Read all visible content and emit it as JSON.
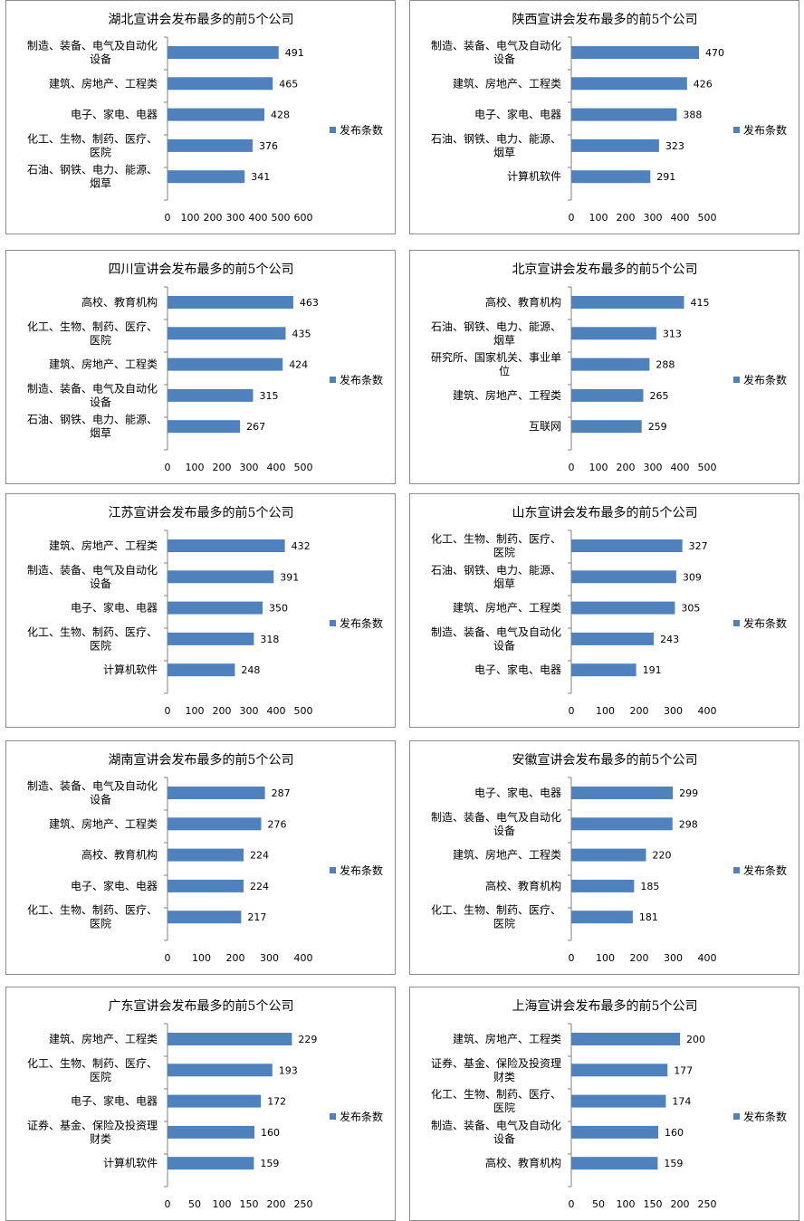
{
  "legend_label": "发布条数",
  "colors": {
    "bar": "#4f81bd",
    "axis": "#808080",
    "border": "#8c8c8c"
  },
  "chart_data": [
    {
      "type": "bar",
      "orientation": "horizontal",
      "title": "湖北宣讲会发布最多的前5个公司",
      "categories": [
        [
          "制造、装备、电气及自动化",
          "设备"
        ],
        [
          "建筑、房地产、工程类"
        ],
        [
          "电子、家电、电器"
        ],
        [
          "化工、生物、制药、医疗、",
          "医院"
        ],
        [
          "石油、钢铁、电力、能源、",
          "烟草"
        ]
      ],
      "series": [
        {
          "name": "发布条数",
          "values": [
            491,
            465,
            428,
            376,
            341
          ]
        }
      ],
      "xlim": [
        0,
        600
      ],
      "ticks": [
        0,
        100,
        200,
        300,
        400,
        500,
        600
      ],
      "legend": "right"
    },
    {
      "type": "bar",
      "orientation": "horizontal",
      "title": "陕西宣讲会发布最多的前5个公司",
      "categories": [
        [
          "制造、装备、电气及自动化",
          "设备"
        ],
        [
          "建筑、房地产、工程类"
        ],
        [
          "电子、家电、电器"
        ],
        [
          "石油、钢铁、电力、能源、",
          "烟草"
        ],
        [
          "计算机软件"
        ]
      ],
      "series": [
        {
          "name": "发布条数",
          "values": [
            470,
            426,
            388,
            323,
            291
          ]
        }
      ],
      "xlim": [
        0,
        500
      ],
      "ticks": [
        0,
        100,
        200,
        300,
        400,
        500
      ],
      "legend": "right"
    },
    {
      "type": "bar",
      "orientation": "horizontal",
      "title": "四川宣讲会发布最多的前5个公司",
      "categories": [
        [
          "高校、教育机构"
        ],
        [
          "化工、生物、制药、医疗、",
          "医院"
        ],
        [
          "建筑、房地产、工程类"
        ],
        [
          "制造、装备、电气及自动化",
          "设备"
        ],
        [
          "石油、钢铁、电力、能源、",
          "烟草"
        ]
      ],
      "series": [
        {
          "name": "发布条数",
          "values": [
            463,
            435,
            424,
            315,
            267
          ]
        }
      ],
      "xlim": [
        0,
        500
      ],
      "ticks": [
        0,
        100,
        200,
        300,
        400,
        500
      ],
      "legend": "right"
    },
    {
      "type": "bar",
      "orientation": "horizontal",
      "title": "北京宣讲会发布最多的前5个公司",
      "categories": [
        [
          "高校、教育机构"
        ],
        [
          "石油、钢铁、电力、能源、",
          "烟草"
        ],
        [
          "研究所、国家机关、事业单",
          "位"
        ],
        [
          "建筑、房地产、工程类"
        ],
        [
          "互联网"
        ]
      ],
      "series": [
        {
          "name": "发布条数",
          "values": [
            415,
            313,
            288,
            265,
            259
          ]
        }
      ],
      "xlim": [
        0,
        500
      ],
      "ticks": [
        0,
        100,
        200,
        300,
        400,
        500
      ],
      "legend": "right"
    },
    {
      "type": "bar",
      "orientation": "horizontal",
      "title": "江苏宣讲会发布最多的前5个公司",
      "categories": [
        [
          "建筑、房地产、工程类"
        ],
        [
          "制造、装备、电气及自动化",
          "设备"
        ],
        [
          "电子、家电、电器"
        ],
        [
          "化工、生物、制药、医疗、",
          "医院"
        ],
        [
          "计算机软件"
        ]
      ],
      "series": [
        {
          "name": "发布条数",
          "values": [
            432,
            391,
            350,
            318,
            248
          ]
        }
      ],
      "xlim": [
        0,
        500
      ],
      "ticks": [
        0,
        100,
        200,
        300,
        400,
        500
      ],
      "legend": "right"
    },
    {
      "type": "bar",
      "orientation": "horizontal",
      "title": "山东宣讲会发布最多的前5个公司",
      "categories": [
        [
          "化工、生物、制药、医疗、",
          "医院"
        ],
        [
          "石油、钢铁、电力、能源、",
          "烟草"
        ],
        [
          "建筑、房地产、工程类"
        ],
        [
          "制造、装备、电气及自动化",
          "设备"
        ],
        [
          "电子、家电、电器"
        ]
      ],
      "series": [
        {
          "name": "发布条数",
          "values": [
            327,
            309,
            305,
            243,
            191
          ]
        }
      ],
      "xlim": [
        0,
        400
      ],
      "ticks": [
        0,
        100,
        200,
        300,
        400
      ],
      "legend": "right"
    },
    {
      "type": "bar",
      "orientation": "horizontal",
      "title": "湖南宣讲会发布最多的前5个公司",
      "categories": [
        [
          "制造、装备、电气及自动化",
          "设备"
        ],
        [
          "建筑、房地产、工程类"
        ],
        [
          "高校、教育机构"
        ],
        [
          "电子、家电、电器"
        ],
        [
          "化工、生物、制药、医疗、",
          "医院"
        ]
      ],
      "series": [
        {
          "name": "发布条数",
          "values": [
            287,
            276,
            224,
            224,
            217
          ]
        }
      ],
      "xlim": [
        0,
        400
      ],
      "ticks": [
        0,
        100,
        200,
        300,
        400
      ],
      "legend": "right"
    },
    {
      "type": "bar",
      "orientation": "horizontal",
      "title": "安徽宣讲会发布最多的前5个公司",
      "categories": [
        [
          "电子、家电、电器"
        ],
        [
          "制造、装备、电气及自动化",
          "设备"
        ],
        [
          "建筑、房地产、工程类"
        ],
        [
          "高校、教育机构"
        ],
        [
          "化工、生物、制药、医疗、",
          "医院"
        ]
      ],
      "series": [
        {
          "name": "发布条数",
          "values": [
            299,
            298,
            220,
            185,
            181
          ]
        }
      ],
      "xlim": [
        0,
        400
      ],
      "ticks": [
        0,
        100,
        200,
        300,
        400
      ],
      "legend": "right"
    },
    {
      "type": "bar",
      "orientation": "horizontal",
      "title": "广东宣讲会发布最多的前5个公司",
      "categories": [
        [
          "建筑、房地产、工程类"
        ],
        [
          "化工、生物、制药、医疗、",
          "医院"
        ],
        [
          "电子、家电、电器"
        ],
        [
          "证券、基金、保险及投资理",
          "财类"
        ],
        [
          "计算机软件"
        ]
      ],
      "series": [
        {
          "name": "发布条数",
          "values": [
            229,
            193,
            172,
            160,
            159
          ]
        }
      ],
      "xlim": [
        0,
        250
      ],
      "ticks": [
        0,
        50,
        100,
        150,
        200,
        250
      ],
      "legend": "right"
    },
    {
      "type": "bar",
      "orientation": "horizontal",
      "title": "上海宣讲会发布最多的前5个公司",
      "categories": [
        [
          "建筑、房地产、工程类"
        ],
        [
          "证券、基金、保险及投资理",
          "财类"
        ],
        [
          "化工、生物、制药、医疗、",
          "医院"
        ],
        [
          "制造、装备、电气及自动化",
          "设备"
        ],
        [
          "高校、教育机构"
        ]
      ],
      "series": [
        {
          "name": "发布条数",
          "values": [
            200,
            177,
            174,
            160,
            159
          ]
        }
      ],
      "xlim": [
        0,
        250
      ],
      "ticks": [
        0,
        50,
        100,
        150,
        200,
        250
      ],
      "legend": "right"
    }
  ]
}
